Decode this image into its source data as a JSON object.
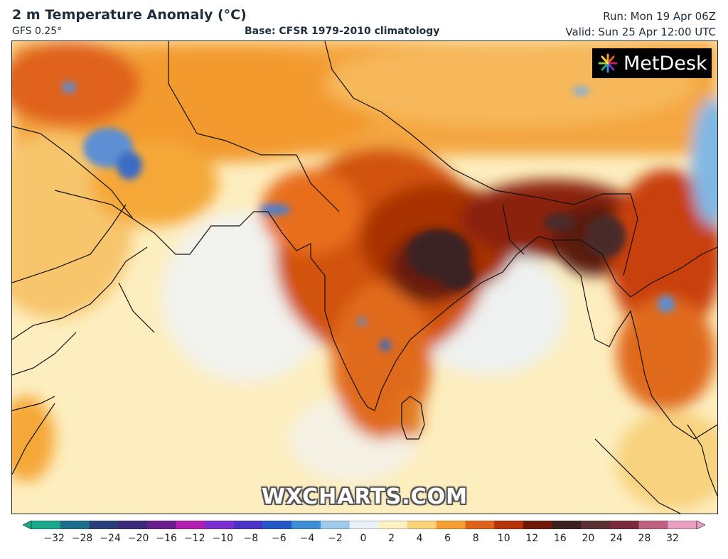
{
  "header": {
    "title": "2 m Temperature Anomaly (°C)",
    "model": "GFS 0.25°",
    "base": "Base: CFSR 1979-2010 climatology",
    "run": "Run: Mon 19 Apr 06Z",
    "valid": "Valid: Sun 25 Apr 12:00 UTC"
  },
  "logo": {
    "text": "MetDesk"
  },
  "watermark": "WXCHARTS.COM",
  "legend": {
    "ticks": [
      "−32",
      "−28",
      "−24",
      "−20",
      "−16",
      "−12",
      "−10",
      "−8",
      "−6",
      "−4",
      "−2",
      "0",
      "2",
      "4",
      "6",
      "8",
      "10",
      "12",
      "16",
      "20",
      "24",
      "28",
      "32"
    ],
    "colors": [
      "#1aa88a",
      "#1d6e8c",
      "#2a3f7a",
      "#3b2a7a",
      "#6a1f8f",
      "#b01fb0",
      "#7a2fd0",
      "#4a34c8",
      "#2458c8",
      "#3c8fd6",
      "#9fcbe9",
      "#e8f2f8",
      "#fdf1c4",
      "#fbd37a",
      "#f5a030",
      "#e0621a",
      "#b83208",
      "#701808",
      "#3a2020",
      "#5a3030",
      "#7a2a3a",
      "#c06080",
      "#e99fc2"
    ]
  },
  "map_info": {
    "region": "South Asia",
    "variable": "2 m temperature anomaly",
    "units": "°C"
  }
}
